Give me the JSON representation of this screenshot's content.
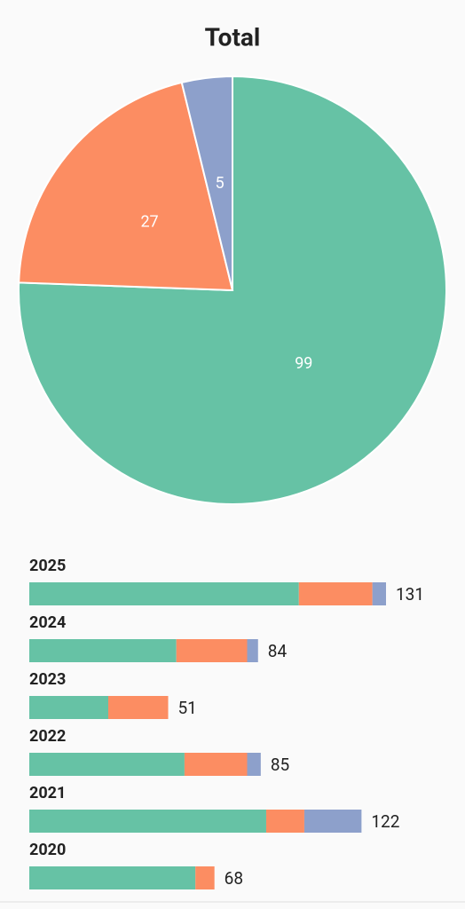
{
  "chart_data": [
    {
      "type": "pie",
      "title": "Total",
      "values": [
        99,
        27,
        5
      ],
      "colors": [
        "#66c2a5",
        "#fc8d62",
        "#8da0cb"
      ]
    },
    {
      "type": "stacked-hbar",
      "categories": [
        "2025",
        "2024",
        "2023",
        "2022",
        "2021",
        "2020"
      ],
      "series": [
        {
          "color": "#66c2a5",
          "values": [
            99,
            54,
            29,
            57,
            87,
            61
          ]
        },
        {
          "color": "#fc8d62",
          "values": [
            27,
            26,
            22,
            23,
            14,
            7
          ]
        },
        {
          "color": "#8da0cb",
          "values": [
            5,
            4,
            0,
            5,
            21,
            0
          ]
        }
      ],
      "totals": [
        131,
        84,
        51,
        85,
        122,
        68
      ]
    }
  ]
}
